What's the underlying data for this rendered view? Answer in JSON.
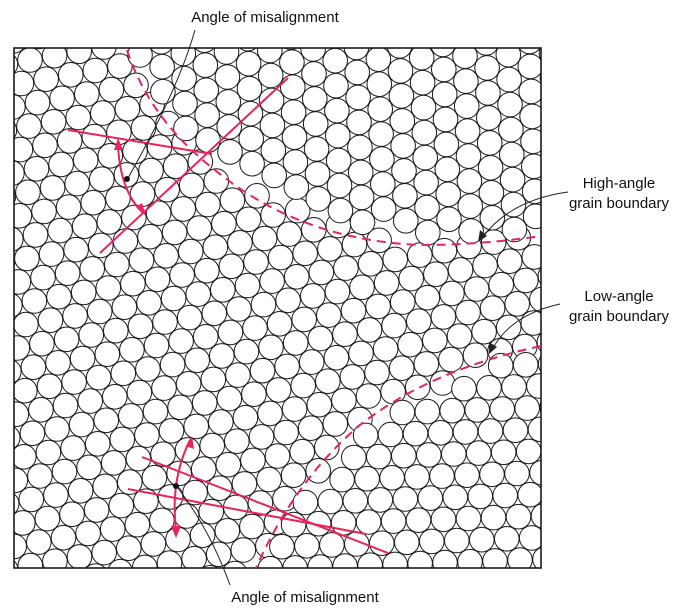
{
  "labels": {
    "top": "Angle of misalignment",
    "bottom": "Angle of misalignment",
    "high_angle_line1": "High-angle",
    "high_angle_line2": "grain boundary",
    "low_angle_line1": "Low-angle",
    "low_angle_line2": "grain boundary"
  },
  "colors": {
    "atom_stroke": "#1a1a1a",
    "boundary": "#e8245a",
    "frame": "#1a1a1a",
    "leader": "#222222"
  }
}
